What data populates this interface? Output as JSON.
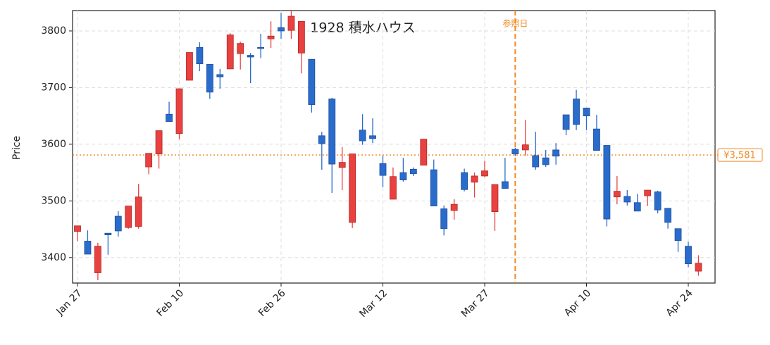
{
  "chart_data": {
    "type": "candlestick",
    "title": "1928  積水ハウス",
    "y_label": "Price",
    "categories": [
      "Jan 27",
      null,
      null,
      null,
      null,
      null,
      null,
      null,
      null,
      null,
      "Feb 10",
      null,
      null,
      null,
      null,
      null,
      null,
      null,
      null,
      null,
      "Feb 26",
      null,
      null,
      null,
      null,
      null,
      null,
      null,
      null,
      null,
      "Mar 12",
      null,
      null,
      null,
      null,
      null,
      null,
      null,
      null,
      null,
      "Mar 27",
      null,
      null,
      null,
      null,
      null,
      null,
      null,
      null,
      null,
      "Apr 10",
      null,
      null,
      null,
      null,
      null,
      null,
      null,
      null,
      null,
      "Apr 24",
      null
    ],
    "open": [
      3446,
      3429,
      3373,
      3443,
      3473,
      3453,
      3455,
      3560,
      3583,
      3653,
      3619,
      3713,
      3771,
      3741,
      3723,
      3733,
      3760,
      3757,
      3771,
      3786,
      3806,
      3801,
      3761,
      3750,
      3615,
      3680,
      3559,
      3462,
      3625,
      3615,
      3566,
      3503,
      3550,
      3556,
      3563,
      3555,
      3486,
      3483,
      3550,
      3533,
      3544,
      3481,
      3534,
      3591,
      3590,
      3580,
      3576,
      3590,
      3652,
      3680,
      3664,
      3627,
      3598,
      3507,
      3508,
      3497,
      3509,
      3516,
      3487,
      3451,
      3420,
      3376
    ],
    "high": [
      3456,
      3448,
      3426,
      3443,
      3482,
      3491,
      3530,
      3584,
      3624,
      3675,
      3698,
      3762,
      3780,
      3741,
      3733,
      3796,
      3781,
      3761,
      3795,
      3817,
      3832,
      3836,
      3817,
      3750,
      3622,
      3682,
      3595,
      3583,
      3653,
      3646,
      3580,
      3559,
      3576,
      3559,
      3609,
      3573,
      3492,
      3503,
      3557,
      3550,
      3571,
      3529,
      3576,
      3594,
      3643,
      3622,
      3590,
      3602,
      3652,
      3696,
      3664,
      3652,
      3598,
      3544,
      3519,
      3512,
      3519,
      3518,
      3487,
      3451,
      3428,
      3404
    ],
    "low": [
      3429,
      3406,
      3360,
      3405,
      3437,
      3451,
      3451,
      3547,
      3557,
      3640,
      3609,
      3713,
      3729,
      3680,
      3698,
      3733,
      3732,
      3708,
      3752,
      3770,
      3786,
      3786,
      3725,
      3656,
      3555,
      3514,
      3519,
      3452,
      3599,
      3602,
      3524,
      3503,
      3534,
      3544,
      3563,
      3491,
      3439,
      3467,
      3517,
      3506,
      3542,
      3447,
      3522,
      3579,
      3580,
      3555,
      3560,
      3564,
      3616,
      3625,
      3625,
      3589,
      3455,
      3494,
      3492,
      3482,
      3491,
      3478,
      3451,
      3410,
      3383,
      3368
    ],
    "close": [
      3456,
      3406,
      3420,
      3440,
      3447,
      3491,
      3507,
      3584,
      3624,
      3640,
      3698,
      3762,
      3742,
      3692,
      3719,
      3793,
      3778,
      3754,
      3769,
      3791,
      3800,
      3826,
      3817,
      3670,
      3601,
      3565,
      3568,
      3583,
      3606,
      3610,
      3545,
      3543,
      3537,
      3548,
      3609,
      3491,
      3451,
      3494,
      3520,
      3544,
      3553,
      3529,
      3522,
      3583,
      3599,
      3560,
      3564,
      3579,
      3626,
      3635,
      3650,
      3589,
      3468,
      3517,
      3498,
      3482,
      3519,
      3484,
      3462,
      3430,
      3389,
      3390
    ],
    "up_color": "#e8413f",
    "down_color": "#2a6ccc",
    "ylim": [
      3355,
      3836
    ],
    "yticks": [
      3400,
      3500,
      3600,
      3700,
      3800
    ],
    "grid": true,
    "ref_line": {
      "label": "参照日",
      "index": 43,
      "color": "#f08a24"
    },
    "price_line": {
      "value": 3581,
      "label": "¥3,581",
      "color": "#f08a24"
    }
  }
}
